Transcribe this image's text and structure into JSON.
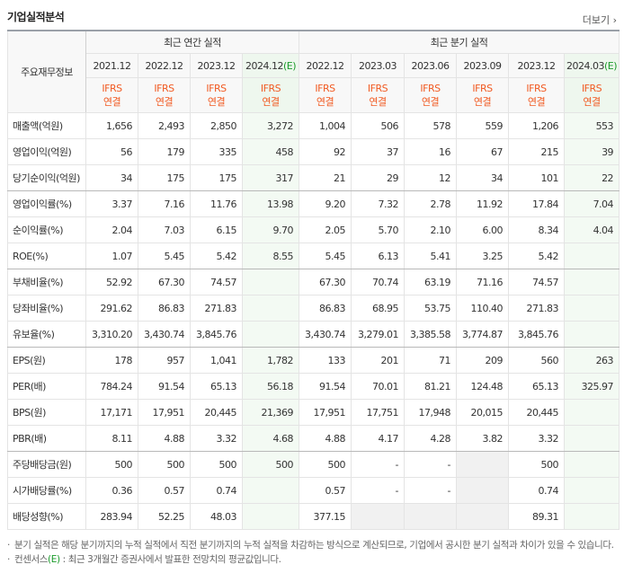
{
  "header": {
    "title": "기업실적분석",
    "more": "더보기"
  },
  "table": {
    "corner": "주요재무정보",
    "groups": [
      {
        "label": "최근 연간 실적",
        "columns": [
          {
            "period": "2021.12",
            "standard": "IFRS",
            "basis": "연결"
          },
          {
            "period": "2022.12",
            "standard": "IFRS",
            "basis": "연결"
          },
          {
            "period": "2023.12",
            "standard": "IFRS",
            "basis": "연결"
          },
          {
            "period": "2024.12",
            "estimate": "(E)",
            "standard": "IFRS",
            "basis": "연결"
          }
        ]
      },
      {
        "label": "최근 분기 실적",
        "columns": [
          {
            "period": "2022.12",
            "standard": "IFRS",
            "basis": "연결"
          },
          {
            "period": "2023.03",
            "standard": "IFRS",
            "basis": "연결"
          },
          {
            "period": "2023.06",
            "standard": "IFRS",
            "basis": "연결"
          },
          {
            "period": "2023.09",
            "standard": "IFRS",
            "basis": "연결"
          },
          {
            "period": "2023.12",
            "standard": "IFRS",
            "basis": "연결"
          },
          {
            "period": "2024.03",
            "estimate": "(E)",
            "standard": "IFRS",
            "basis": "연결"
          }
        ]
      }
    ],
    "rows": [
      {
        "label": "매출액(억원)",
        "values": [
          "1,656",
          "2,493",
          "2,850",
          "3,272",
          "1,004",
          "506",
          "578",
          "559",
          "1,206",
          "553"
        ]
      },
      {
        "label": "영업이익(억원)",
        "values": [
          "56",
          "179",
          "335",
          "458",
          "92",
          "37",
          "16",
          "67",
          "215",
          "39"
        ]
      },
      {
        "label": "당기순이익(억원)",
        "values": [
          "34",
          "175",
          "175",
          "317",
          "21",
          "29",
          "12",
          "34",
          "101",
          "22"
        ]
      },
      {
        "label": "영업이익률(%)",
        "values": [
          "3.37",
          "7.16",
          "11.76",
          "13.98",
          "9.20",
          "7.32",
          "2.78",
          "11.92",
          "17.84",
          "7.04"
        ]
      },
      {
        "label": "순이익률(%)",
        "values": [
          "2.04",
          "7.03",
          "6.15",
          "9.70",
          "2.05",
          "5.70",
          "2.10",
          "6.00",
          "8.34",
          "4.04"
        ]
      },
      {
        "label": "ROE(%)",
        "values": [
          "1.07",
          "5.45",
          "5.42",
          "8.55",
          "5.45",
          "6.13",
          "5.41",
          "3.25",
          "5.42",
          null
        ]
      },
      {
        "label": "부채비율(%)",
        "values": [
          "52.92",
          "67.30",
          "74.57",
          null,
          "67.30",
          "70.74",
          "63.19",
          "71.16",
          "74.57",
          null
        ]
      },
      {
        "label": "당좌비율(%)",
        "values": [
          "291.62",
          "86.83",
          "271.83",
          null,
          "86.83",
          "68.95",
          "53.75",
          "110.40",
          "271.83",
          null
        ]
      },
      {
        "label": "유보율(%)",
        "values": [
          "3,310.20",
          "3,430.74",
          "3,845.76",
          null,
          "3,430.74",
          "3,279.01",
          "3,385.58",
          "3,774.87",
          "3,845.76",
          null
        ]
      },
      {
        "label": "EPS(원)",
        "values": [
          "178",
          "957",
          "1,041",
          "1,782",
          "133",
          "201",
          "71",
          "209",
          "560",
          "263"
        ]
      },
      {
        "label": "PER(배)",
        "values": [
          "784.24",
          "91.54",
          "65.13",
          "56.18",
          "91.54",
          "70.01",
          "81.21",
          "124.48",
          "65.13",
          "325.97"
        ]
      },
      {
        "label": "BPS(원)",
        "values": [
          "17,171",
          "17,951",
          "20,445",
          "21,369",
          "17,951",
          "17,751",
          "17,948",
          "20,015",
          "20,445",
          null
        ]
      },
      {
        "label": "PBR(배)",
        "values": [
          "8.11",
          "4.88",
          "3.32",
          "4.68",
          "4.88",
          "4.17",
          "4.28",
          "3.82",
          "3.32",
          null
        ]
      },
      {
        "label": "주당배당금(원)",
        "values": [
          "500",
          "500",
          "500",
          "500",
          "500",
          "-",
          "-",
          null,
          "500",
          null
        ]
      },
      {
        "label": "시가배당률(%)",
        "values": [
          "0.36",
          "0.57",
          "0.74",
          null,
          "0.57",
          "-",
          "-",
          null,
          "0.74",
          null
        ]
      },
      {
        "label": "배당성향(%)",
        "values": [
          "283.94",
          "52.25",
          "48.03",
          null,
          "377.15",
          null,
          null,
          null,
          "89.31",
          null
        ]
      }
    ]
  },
  "notes": [
    {
      "text": "분기 실적은 해당 분기까지의 누적 실적에서 직전 분기까지의 누적 실적을 차감하는 방식으로 계산되므로, 기업에서 공시한 분기 실적과 차이가 있을 수 있습니다."
    },
    {
      "term": "컨센서스",
      "mark": "(E)",
      "text": " : 최근 3개월간 증권사에서 발표한 전망치의 평균값입니다."
    }
  ]
}
